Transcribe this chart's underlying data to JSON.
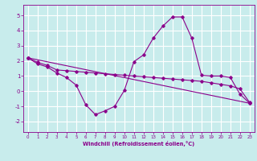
{
  "xlabel": "Windchill (Refroidissement éolien,°C)",
  "background_color": "#c8ecec",
  "line_color": "#8b008b",
  "grid_color": "#ffffff",
  "xlim": [
    -0.5,
    23.5
  ],
  "ylim": [
    -2.7,
    5.7
  ],
  "xticks": [
    0,
    1,
    2,
    3,
    4,
    5,
    6,
    7,
    8,
    9,
    10,
    11,
    12,
    13,
    14,
    15,
    16,
    17,
    18,
    19,
    20,
    21,
    22,
    23
  ],
  "yticks": [
    -2,
    -1,
    0,
    1,
    2,
    3,
    4,
    5
  ],
  "series1_x": [
    0,
    1,
    2,
    3,
    4,
    5,
    6,
    7,
    8,
    9,
    10,
    11,
    12,
    13,
    14,
    15,
    16,
    17,
    18,
    19,
    20,
    21,
    22,
    23
  ],
  "series1_y": [
    2.2,
    1.8,
    1.6,
    1.2,
    0.9,
    0.4,
    -0.9,
    -1.55,
    -1.3,
    -1.0,
    0.05,
    1.95,
    2.4,
    3.5,
    4.3,
    4.9,
    4.9,
    3.5,
    1.05,
    1.0,
    1.0,
    0.9,
    -0.2,
    -0.8
  ],
  "series2_x": [
    0,
    1,
    2,
    3,
    4,
    5,
    6,
    7,
    8,
    9,
    10,
    11,
    12,
    13,
    14,
    15,
    16,
    17,
    18,
    19,
    20,
    21,
    22,
    23
  ],
  "series2_y": [
    2.2,
    1.9,
    1.7,
    1.4,
    1.35,
    1.3,
    1.25,
    1.2,
    1.15,
    1.1,
    1.05,
    1.0,
    0.95,
    0.9,
    0.85,
    0.8,
    0.75,
    0.7,
    0.65,
    0.55,
    0.45,
    0.35,
    0.15,
    -0.75
  ],
  "series3_x": [
    0,
    23
  ],
  "series3_y": [
    2.2,
    -0.8
  ]
}
